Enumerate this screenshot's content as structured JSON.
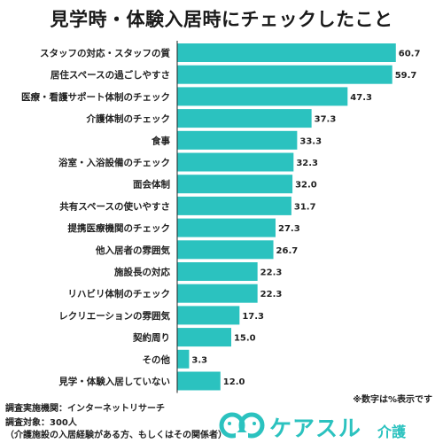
{
  "colors": {
    "bar": "#2bc2bf",
    "axis": "#222222",
    "logo": "#2bc2bf"
  },
  "chart_data": {
    "type": "bar",
    "orientation": "horizontal",
    "title": "見学時・体験入居時にチェックしたこと",
    "categories": [
      "スタッフの対応・スタッフの質",
      "居住スペースの過ごしやすさ",
      "医療・看護サポート体制のチェック",
      "介護体制のチェック",
      "食事",
      "浴室・入浴設備のチェック",
      "面会体制",
      "共有スペースの使いやすさ",
      "提携医療機関のチェック",
      "他入居者の雰囲気",
      "施設長の対応",
      "リハビリ体制のチェック",
      "レクリエーションの雰囲気",
      "契約周り",
      "その他",
      "見学・体験入居していない"
    ],
    "values": [
      60.7,
      59.7,
      47.3,
      37.3,
      33.3,
      32.3,
      32.0,
      31.7,
      27.3,
      26.7,
      22.3,
      22.3,
      17.3,
      15.0,
      3.3,
      12.0
    ],
    "value_labels": [
      "60.7",
      "59.7",
      "47.3",
      "37.3",
      "33.3",
      "32.3",
      "32.0",
      "31.7",
      "27.3",
      "26.7",
      "22.3",
      "22.3",
      "17.3",
      "15.0",
      "3.3",
      "12.0"
    ],
    "xlim": [
      0,
      61
    ],
    "grid": false,
    "legend": "none"
  },
  "note": "※数字は%表示です",
  "footer": {
    "line1": "調査実施機関：インターネットリサーチ",
    "line2": "調査対象：300人",
    "line3": "（介護施設の入居経験がある方、もしくはその関係者）"
  },
  "logo": {
    "text": "ケアスル",
    "sub": "介護"
  }
}
